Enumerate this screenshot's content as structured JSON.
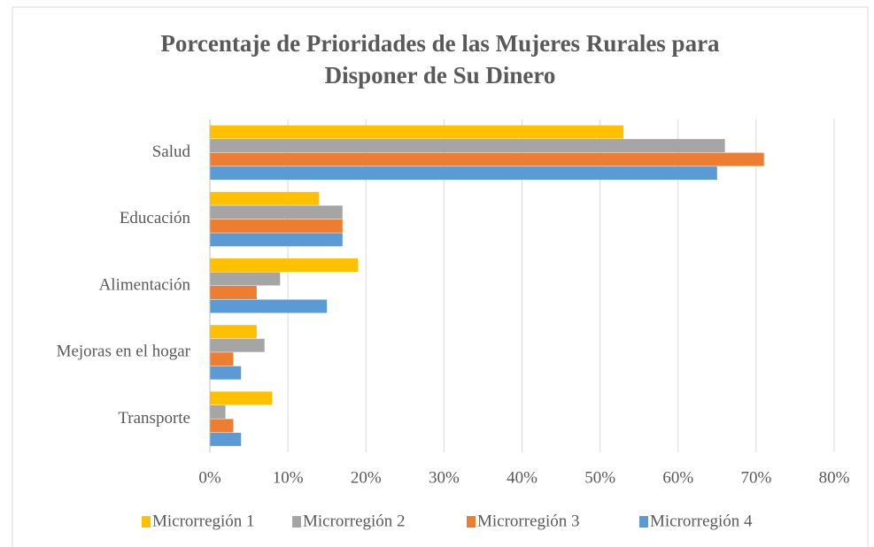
{
  "chart_data": {
    "type": "hbar",
    "title": "Porcentaje de Prioridades de las Mujeres Rurales para Disponer de Su Dinero",
    "categories": [
      "Salud",
      "Educación",
      "Alimentación",
      "Mejoras en el hogar",
      "Transporte"
    ],
    "series": [
      {
        "name": "Microrregión 1",
        "color": "#FFC000",
        "values": [
          53,
          14,
          19,
          6,
          8
        ]
      },
      {
        "name": "Microrregión 2",
        "color": "#A5A5A5",
        "values": [
          66,
          17,
          9,
          7,
          2
        ]
      },
      {
        "name": "Microrregión 3",
        "color": "#ED7D31",
        "values": [
          71,
          17,
          6,
          3,
          3
        ]
      },
      {
        "name": "Microrregión 4",
        "color": "#5B9BD5",
        "values": [
          65,
          17,
          15,
          4,
          4
        ]
      }
    ],
    "xlim": [
      0,
      80
    ],
    "xticks": [
      {
        "value": 0,
        "label": "0%"
      },
      {
        "value": 10,
        "label": "10%"
      },
      {
        "value": 20,
        "label": "20%"
      },
      {
        "value": 30,
        "label": "30%"
      },
      {
        "value": 40,
        "label": "40%"
      },
      {
        "value": 50,
        "label": "50%"
      },
      {
        "value": 60,
        "label": "60%"
      },
      {
        "value": 70,
        "label": "70%"
      },
      {
        "value": 80,
        "label": "80%"
      }
    ],
    "grid": true,
    "legend": "bottom"
  }
}
